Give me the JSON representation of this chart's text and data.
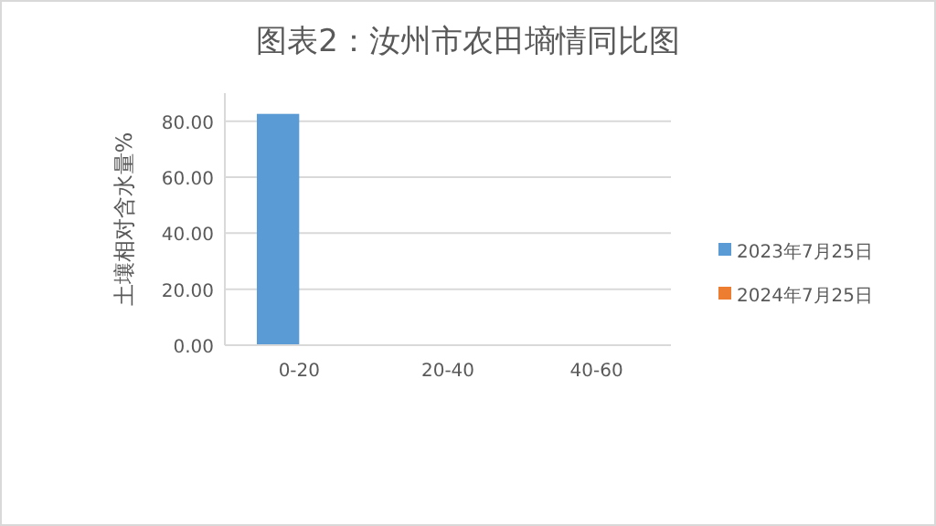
{
  "chart_data": {
    "type": "bar",
    "title": "图表2：汝州市农田墒情同比图",
    "ylabel": "土壤相对含水量%",
    "categories": [
      "0-20",
      "20-40",
      "40-60"
    ],
    "series": [
      {
        "name": "2023年7月25日",
        "color": "#5b9bd5",
        "values": [
          82.6,
          null,
          null
        ]
      },
      {
        "name": "2024年7月25日",
        "color": "#ed7d31",
        "values": [
          null,
          null,
          null
        ]
      }
    ],
    "ylim": [
      0,
      90
    ],
    "yticks": [
      {
        "value": 0,
        "label": "0.00"
      },
      {
        "value": 20,
        "label": "20.00"
      },
      {
        "value": 40,
        "label": "40.00"
      },
      {
        "value": 60,
        "label": "60.00"
      },
      {
        "value": 80,
        "label": "80.00"
      }
    ],
    "grid": "y",
    "legend": "right"
  }
}
